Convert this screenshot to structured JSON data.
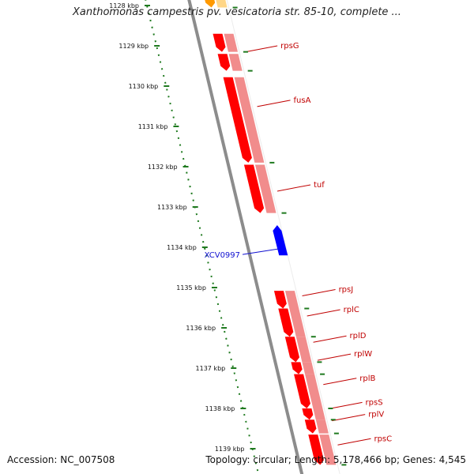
{
  "title": "Xanthomonas campestris pv. vesicatoria str. 85-10, complete ...",
  "footer": {
    "accession": "Accession: NC_007508",
    "summary": "Topology: circular; Length: 5,178,466 bp; Genes: 4,545"
  },
  "colors": {
    "backbone": "#8c8c8c",
    "plus_gene": "#ff0000",
    "plus_shadow": "#f08080",
    "minus_gene": "#0000ff",
    "orange_gene": "#ff9900",
    "ruler_dots": "#1f7a1f",
    "label_plus": "#c00000",
    "label_minus": "#1010d0"
  },
  "ruler": {
    "unit": "kbp",
    "ticks": [
      {
        "kbp": 1128,
        "label": "1128 kbp"
      },
      {
        "kbp": 1129,
        "label": "1129 kbp"
      },
      {
        "kbp": 1130,
        "label": "1130 kbp"
      },
      {
        "kbp": 1131,
        "label": "1131 kbp"
      },
      {
        "kbp": 1132,
        "label": "1132 kbp"
      },
      {
        "kbp": 1133,
        "label": "1133 kbp"
      },
      {
        "kbp": 1134,
        "label": "1134 kbp"
      },
      {
        "kbp": 1135,
        "label": "1135 kbp"
      },
      {
        "kbp": 1136,
        "label": "1136 kbp"
      },
      {
        "kbp": 1137,
        "label": "1137 kbp"
      },
      {
        "kbp": 1138,
        "label": "1138 kbp"
      },
      {
        "kbp": 1139,
        "label": "1139 kbp"
      }
    ]
  },
  "genes": [
    {
      "name": "",
      "strand": "+",
      "start_kbp": 1127.8,
      "end_kbp": 1128.05,
      "color": "orange"
    },
    {
      "name": "rpsG",
      "strand": "+",
      "start_kbp": 1128.7,
      "end_kbp": 1129.15
    },
    {
      "name": "rpsG",
      "strand": "+",
      "start_kbp": 1129.2,
      "end_kbp": 1129.62,
      "labelled": true
    },
    {
      "name": "fusA",
      "strand": "+",
      "start_kbp": 1129.78,
      "end_kbp": 1131.9,
      "labelled": true
    },
    {
      "name": "tuf",
      "strand": "+",
      "start_kbp": 1131.95,
      "end_kbp": 1133.15,
      "labelled": true
    },
    {
      "name": "XCV0997",
      "strand": "-",
      "start_kbp": 1133.55,
      "end_kbp": 1134.2,
      "labelled": true
    },
    {
      "name": "rpsJ",
      "strand": "+",
      "start_kbp": 1135.08,
      "end_kbp": 1135.52,
      "labelled": true
    },
    {
      "name": "rplC",
      "strand": "+",
      "start_kbp": 1135.52,
      "end_kbp": 1136.22,
      "labelled": true
    },
    {
      "name": "rplD",
      "strand": "+",
      "start_kbp": 1136.22,
      "end_kbp": 1136.85,
      "labelled": true
    },
    {
      "name": "rplW",
      "strand": "+",
      "start_kbp": 1136.85,
      "end_kbp": 1137.15,
      "labelled": true
    },
    {
      "name": "rplB",
      "strand": "+",
      "start_kbp": 1137.15,
      "end_kbp": 1138.0,
      "labelled": true
    },
    {
      "name": "rpsS",
      "strand": "+",
      "start_kbp": 1138.0,
      "end_kbp": 1138.28,
      "labelled": true
    },
    {
      "name": "rplV",
      "strand": "+",
      "start_kbp": 1138.28,
      "end_kbp": 1138.62,
      "labelled": true
    },
    {
      "name": "rpsC",
      "strand": "+",
      "start_kbp": 1138.65,
      "end_kbp": 1139.4,
      "labelled": true
    }
  ],
  "labels": [
    {
      "gene": "rpsG",
      "text": "rpsG",
      "y_kbp": 1129.0
    },
    {
      "gene": "fusA",
      "text": "fusA",
      "y_kbp": 1130.35
    },
    {
      "gene": "tuf",
      "text": "tuf",
      "y_kbp": 1132.45
    },
    {
      "gene": "XCV0997",
      "text": "XCV0997",
      "y_kbp": 1134.1
    },
    {
      "gene": "rpsJ",
      "text": "rpsJ",
      "y_kbp": 1135.05
    },
    {
      "gene": "rplC",
      "text": "rplC",
      "y_kbp": 1135.55
    },
    {
      "gene": "rplD",
      "text": "rplD",
      "y_kbp": 1136.2
    },
    {
      "gene": "rplW",
      "text": "rplW",
      "y_kbp": 1136.65
    },
    {
      "gene": "rplB",
      "text": "rplB",
      "y_kbp": 1137.25
    },
    {
      "gene": "rpsS",
      "text": "rpsS",
      "y_kbp": 1137.85
    },
    {
      "gene": "rplV",
      "text": "rplV",
      "y_kbp": 1138.15
    },
    {
      "gene": "rpsC",
      "text": "rpsC",
      "y_kbp": 1138.75
    }
  ]
}
